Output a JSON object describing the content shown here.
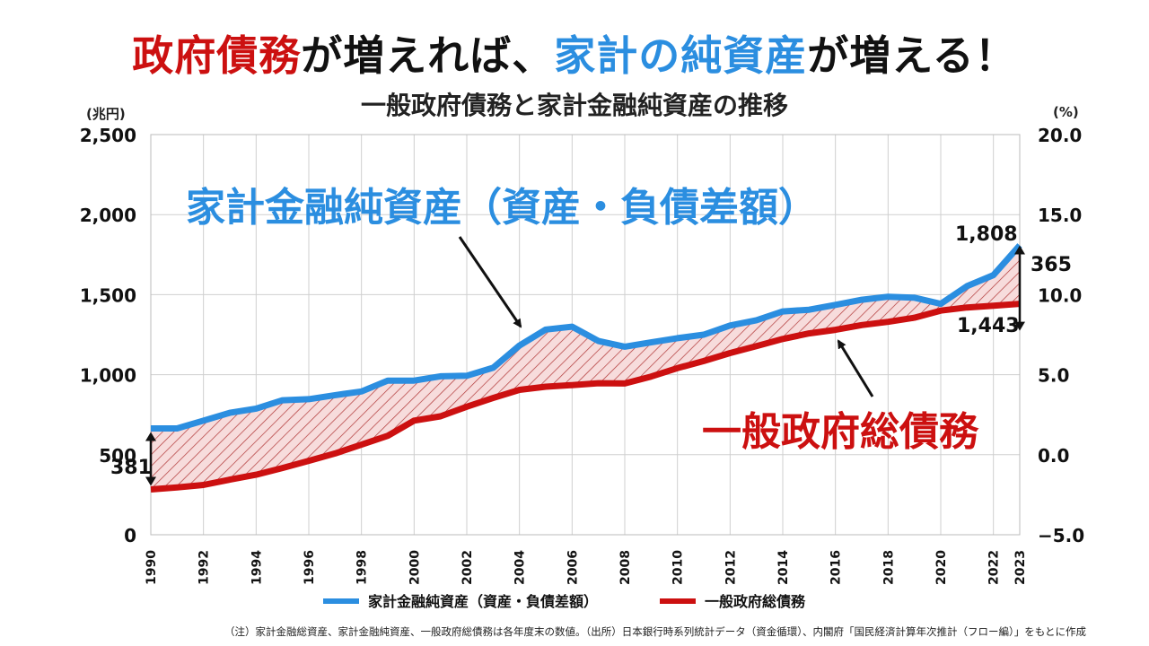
{
  "title": {
    "part1": "政府債務",
    "part2": "が増えれば、",
    "part3": "家計の純資産",
    "part4": "が増える！"
  },
  "subtitle": "一般政府債務と家計金融純資産の推移",
  "colors": {
    "red": "#cc1010",
    "blue": "#2b8ee0",
    "hatch": "#b03535",
    "fill": "#f7dcdc"
  },
  "chart_data": {
    "type": "line",
    "x": [
      1990,
      1991,
      1992,
      1993,
      1994,
      1995,
      1996,
      1997,
      1998,
      1999,
      2000,
      2001,
      2002,
      2003,
      2004,
      2005,
      2006,
      2007,
      2008,
      2009,
      2010,
      2011,
      2012,
      2013,
      2014,
      2015,
      2016,
      2017,
      2018,
      2019,
      2020,
      2021,
      2022,
      2023
    ],
    "x_tick_labels": [
      "1990",
      "1992",
      "1994",
      "1996",
      "1998",
      "2000",
      "2002",
      "2004",
      "2006",
      "2008",
      "2010",
      "2012",
      "2014",
      "2016",
      "2018",
      "2020",
      "2022",
      "2023"
    ],
    "series": [
      {
        "name": "家計金融純資産（資産・負債差額）",
        "color": "#2b8ee0",
        "values": [
          664,
          664,
          713,
          762,
          788,
          840,
          847,
          872,
          895,
          963,
          963,
          990,
          993,
          1043,
          1182,
          1282,
          1300,
          1210,
          1175,
          1202,
          1228,
          1250,
          1307,
          1340,
          1395,
          1406,
          1436,
          1468,
          1487,
          1481,
          1443,
          1553,
          1622,
          1808
        ]
      },
      {
        "name": "一般政府総債務",
        "color": "#cc1010",
        "values": [
          283,
          296,
          311,
          344,
          375,
          417,
          462,
          508,
          563,
          618,
          713,
          740,
          800,
          854,
          905,
          925,
          935,
          947,
          945,
          988,
          1041,
          1085,
          1135,
          1178,
          1223,
          1258,
          1280,
          1310,
          1330,
          1356,
          1400,
          1420,
          1431,
          1443
        ]
      }
    ],
    "labels": {
      "blue_series": "家計金融純資産（資産・負債差額）",
      "red_series": "一般政府総債務"
    },
    "annotations": {
      "start_gap": "381",
      "end_gap": "365",
      "end_blue": "1,808",
      "end_red": "1,443"
    },
    "y_left": {
      "label": "(兆円)",
      "ylim": [
        0,
        2500
      ],
      "ticks": [
        "0",
        "500",
        "1,000",
        "1,500",
        "2,000",
        "2,500"
      ]
    },
    "y_right": {
      "label": "(%)",
      "ylim": [
        -5,
        20
      ],
      "ticks": [
        "−5.0",
        "0.0",
        "5.0",
        "10.0",
        "15.0",
        "20.0"
      ]
    },
    "grid": true,
    "legend_position": "bottom"
  },
  "legend": {
    "blue": "家計金融純資産（資産・負債差額）",
    "red": "一般政府総債務"
  },
  "note": "（注）家計金融総資産、家計金融純資産、一般政府総債務は各年度末の数値。（出所）日本銀行時系列統計データ（資金循環）、内閣府「国民経済計算年次推計（フロー編）」をもとに作成"
}
